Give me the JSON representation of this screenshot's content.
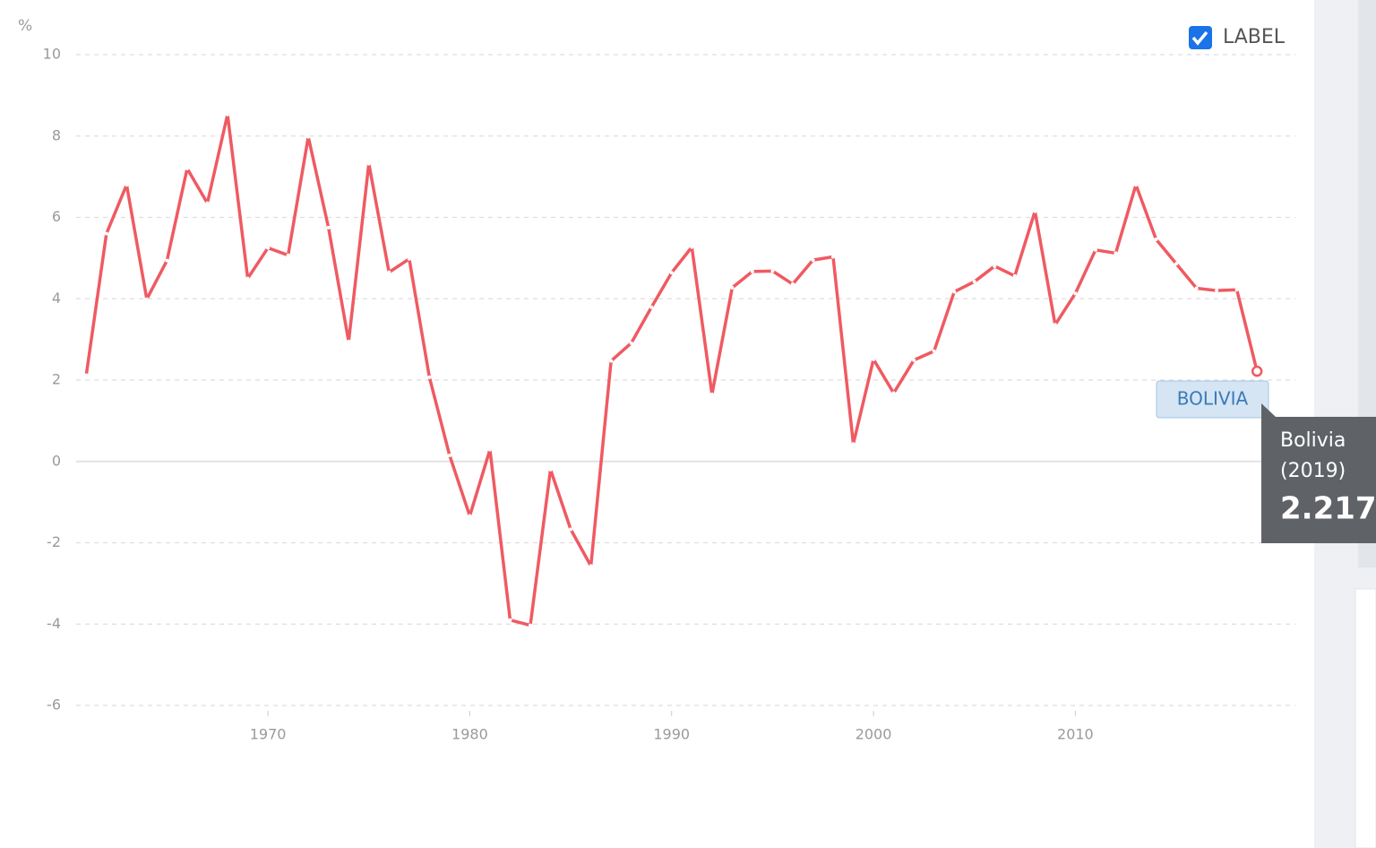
{
  "chart_data": {
    "type": "line",
    "y_label": "%",
    "checkbox_label": "LABEL",
    "show_labels": true,
    "x": [
      1961,
      1962,
      1963,
      1964,
      1965,
      1966,
      1967,
      1968,
      1969,
      1970,
      1971,
      1972,
      1973,
      1974,
      1975,
      1976,
      1977,
      1978,
      1979,
      1980,
      1981,
      1982,
      1983,
      1984,
      1985,
      1986,
      1987,
      1988,
      1989,
      1990,
      1991,
      1992,
      1993,
      1994,
      1995,
      1996,
      1997,
      1998,
      1999,
      2000,
      2001,
      2002,
      2003,
      2004,
      2005,
      2006,
      2007,
      2008,
      2009,
      2010,
      2011,
      2012,
      2013,
      2014,
      2015,
      2016,
      2017,
      2018,
      2019
    ],
    "series": [
      {
        "name": "Bolivia",
        "label": "BOLIVIA",
        "color": "#ef5a62",
        "values": [
          2.12,
          5.6,
          6.8,
          3.99,
          4.94,
          7.2,
          6.35,
          8.53,
          4.5,
          5.25,
          5.07,
          7.98,
          5.75,
          2.95,
          7.32,
          4.65,
          4.98,
          2.07,
          0.15,
          -1.34,
          0.29,
          -3.9,
          -4.03,
          -0.2,
          -1.67,
          -2.57,
          2.47,
          2.91,
          3.79,
          4.64,
          5.27,
          1.65,
          4.27,
          4.67,
          4.68,
          4.36,
          4.95,
          5.03,
          0.43,
          2.51,
          1.68,
          2.49,
          2.71,
          4.17,
          4.42,
          4.8,
          4.56,
          6.15,
          3.36,
          4.13,
          5.2,
          5.12,
          6.8,
          5.46,
          4.86,
          4.26,
          4.2,
          4.22,
          2.217
        ]
      }
    ],
    "tooltip_x_label": "(2019)",
    "xlim": [
      1960.5,
      2020.9
    ],
    "xticks": [
      1970,
      1980,
      1990,
      2000,
      2010
    ],
    "ylim": [
      -6,
      10
    ],
    "yticks": [
      -6,
      -4,
      -2,
      0,
      2,
      4,
      6,
      8,
      10
    ],
    "grid": true
  }
}
